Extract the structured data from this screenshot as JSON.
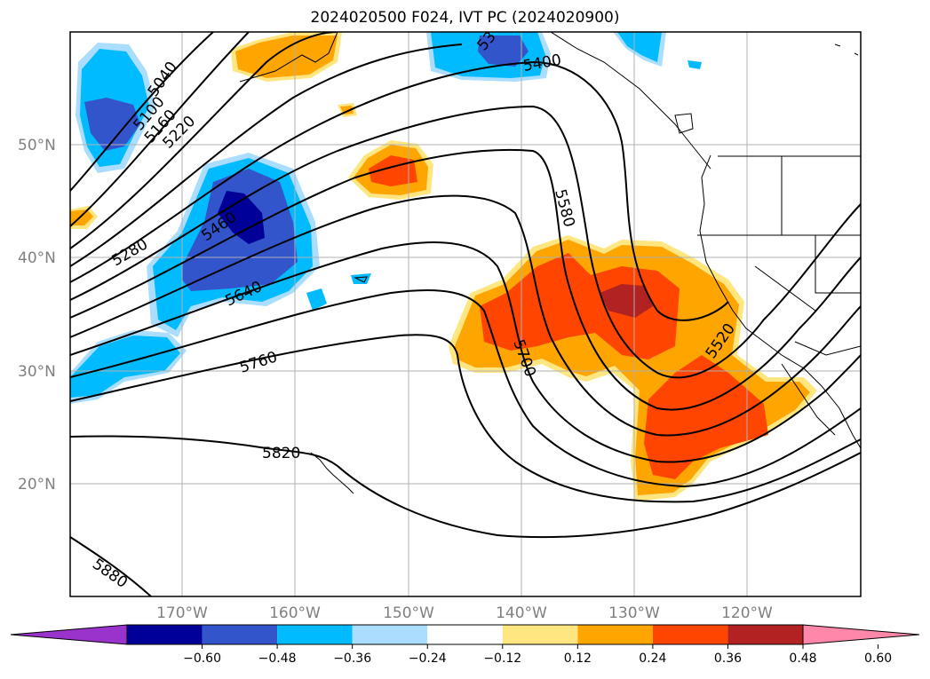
{
  "title": "2024020500 F024, IVT PC (2024020900)",
  "axes": {
    "lat_labels": [
      "50°N",
      "40°N",
      "30°N",
      "20°N"
    ],
    "lon_labels": [
      "170°W",
      "160°W",
      "150°W",
      "140°W",
      "130°W",
      "120°W"
    ]
  },
  "contour_labels": [
    "5040",
    "5100",
    "5160",
    "5220",
    "5280",
    "5460",
    "5640",
    "5760",
    "5820",
    "5880",
    "5580",
    "5700",
    "5520",
    "5400",
    "53"
  ],
  "colorbar": {
    "ticks": [
      "−0.60",
      "−0.48",
      "−0.36",
      "−0.24",
      "−0.12",
      "0.12",
      "0.24",
      "0.36",
      "0.48",
      "0.60"
    ],
    "colors": [
      "#9933cc",
      "#000099",
      "#3355cc",
      "#00bbff",
      "#aaddff",
      "#ffffff",
      "#ffe680",
      "#ffa500",
      "#ff4500",
      "#b22222",
      "#ff88aa"
    ]
  },
  "colors": {
    "neg_light": "#aaddff",
    "neg_mid": "#00bbff",
    "neg_strong": "#3355cc",
    "neg_max": "#000099",
    "pos_light": "#ffe680",
    "pos_mid": "#ffa500",
    "pos_strong": "#ff4500",
    "pos_max": "#b22222"
  }
}
